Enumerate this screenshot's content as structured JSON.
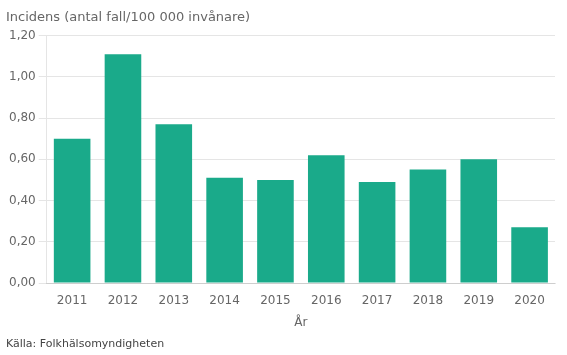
{
  "chart_data": {
    "type": "bar",
    "title": "Incidens (antal fall/100 000 invånare)",
    "xlabel": "År",
    "annotations": [
      "Källa: Folkhälsomyndigheten"
    ],
    "categories": [
      "2011",
      "2012",
      "2013",
      "2014",
      "2015",
      "2016",
      "2017",
      "2018",
      "2019",
      "2020"
    ],
    "values": [
      0.7,
      1.11,
      0.77,
      0.51,
      0.5,
      0.62,
      0.49,
      0.55,
      0.6,
      0.27
    ],
    "color": "#1aaa8a",
    "ylim": [
      0,
      1.2
    ],
    "yticks": [
      {
        "value": 0.0,
        "label": "0,00"
      },
      {
        "value": 0.2,
        "label": "0,20"
      },
      {
        "value": 0.4,
        "label": "0,40"
      },
      {
        "value": 0.6,
        "label": "0,60"
      },
      {
        "value": 0.8,
        "label": "0,80"
      },
      {
        "value": 1.0,
        "label": "1,00"
      },
      {
        "value": 1.2,
        "label": "1,20"
      }
    ],
    "grid": true
  }
}
